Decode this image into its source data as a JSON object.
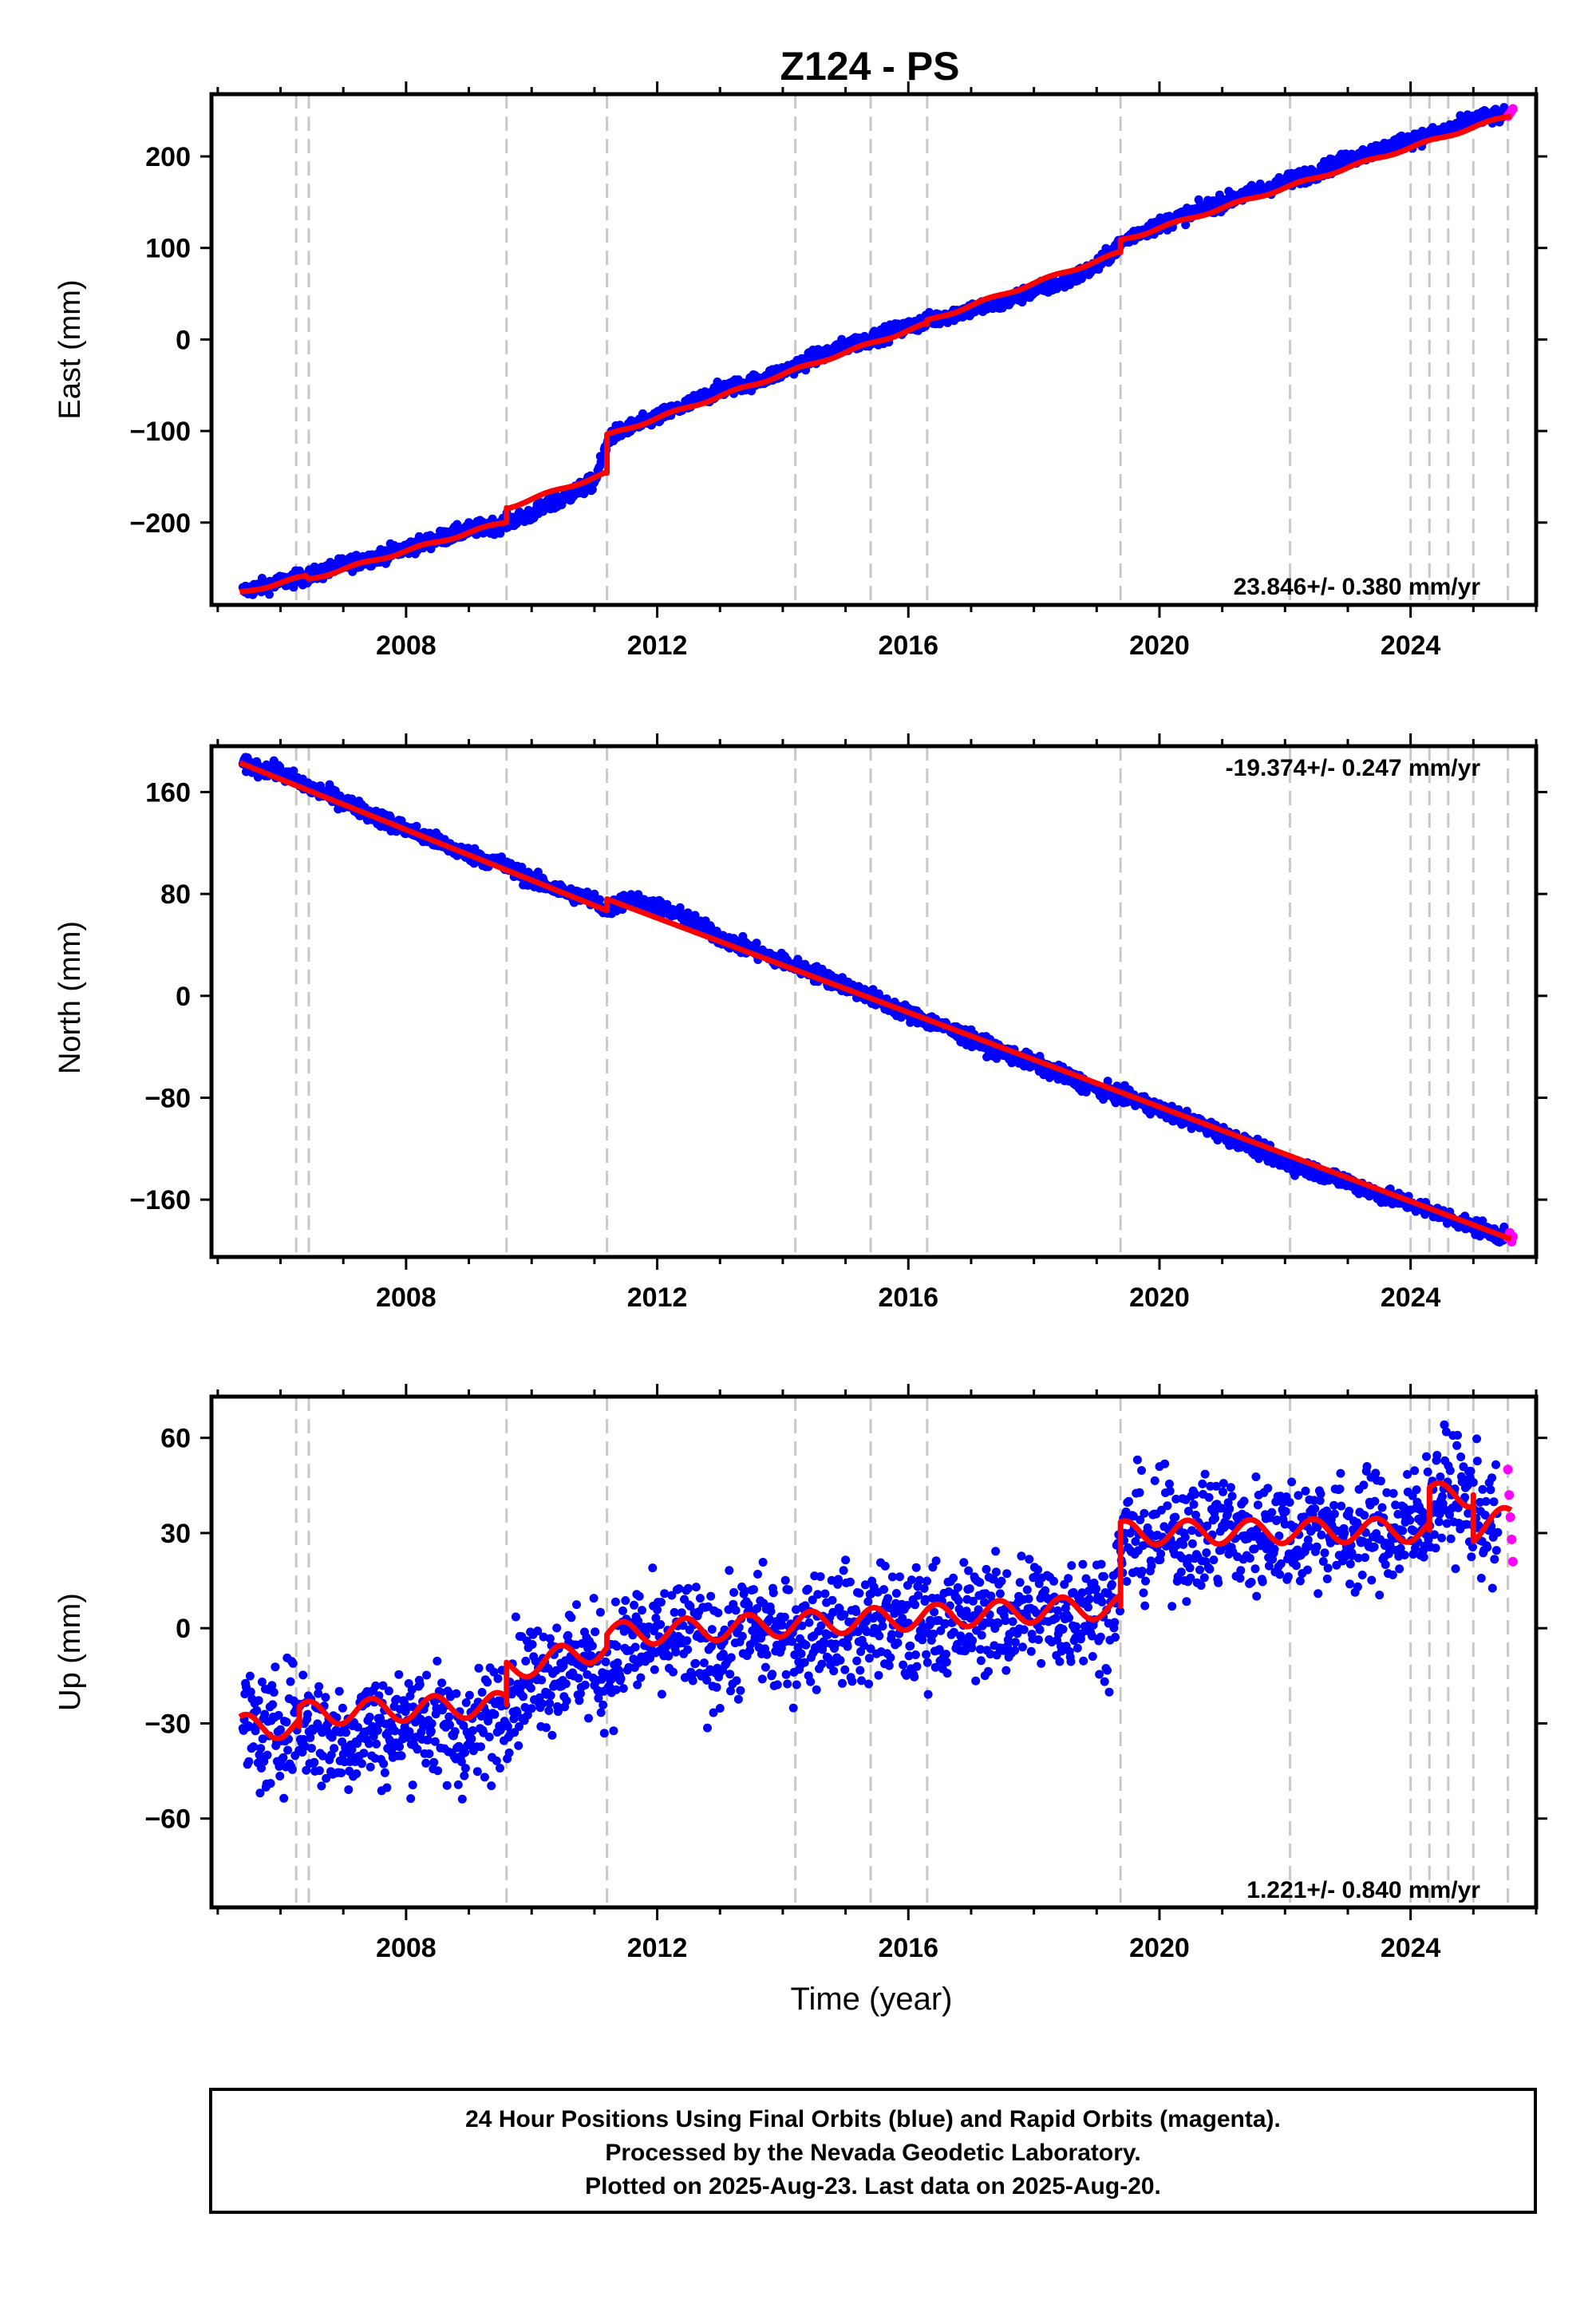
{
  "title": "Z124 - PS",
  "footer": {
    "line1": "24 Hour Positions Using Final Orbits (blue) and Rapid Orbits (magenta).",
    "line2": "Processed by the Nevada Geodetic Laboratory.",
    "line3": "Plotted on 2025-Aug-23. Last data on 2025-Aug-20."
  },
  "colors": {
    "final_orbits": "#0000ff",
    "rapid_orbits": "#ff00ff",
    "model": "#ff0000",
    "event_lines": "#c8c8c8"
  },
  "chart_data": [
    {
      "type": "scatter",
      "ylabel": "East (mm)",
      "xlabel": "",
      "xlim": [
        2004.9,
        2026.0
      ],
      "ylim": [
        -290,
        268
      ],
      "xticks": [
        2008,
        2012,
        2016,
        2020,
        2024
      ],
      "yticks": [
        200,
        100,
        0,
        -100,
        -200
      ],
      "ytick_labels": [
        "200",
        "100",
        "0",
        "−100",
        "−200"
      ],
      "rate_label": "23.846+/- 0.380 mm/yr",
      "rate_position": "bottom-right",
      "event_lines": [
        2006.25,
        2006.45,
        2009.6,
        2011.2,
        2014.2,
        2015.4,
        2016.3,
        2019.38,
        2022.08,
        2024.0,
        2024.3,
        2024.6,
        2025.0,
        2025.55
      ],
      "series": [
        {
          "kind": "final",
          "x": [
            2005.4,
            2006.0,
            2006.5,
            2007.0,
            2007.5,
            2008.0,
            2008.5,
            2009.0,
            2009.5,
            2009.95,
            2010.5,
            2011.0,
            2011.25,
            2011.5,
            2012.0,
            2012.5,
            2013.0,
            2013.5,
            2014.0,
            2014.5,
            2015.0,
            2015.5,
            2016.0,
            2016.5,
            2017.0,
            2017.5,
            2018.0,
            2018.5,
            2019.0,
            2019.4,
            2019.6,
            2020.0,
            2020.5,
            2021.0,
            2021.5,
            2022.0,
            2022.5,
            2023.0,
            2023.5,
            2024.0,
            2024.5,
            2025.0,
            2025.5
          ],
          "y": [
            -275,
            -265,
            -258,
            -246,
            -238,
            -228,
            -218,
            -208,
            -202,
            -192,
            -174,
            -155,
            -105,
            -98,
            -85,
            -71,
            -55,
            -47,
            -35,
            -20,
            -7,
            3,
            14,
            24,
            33,
            40,
            54,
            63,
            80,
            105,
            115,
            125,
            138,
            150,
            161,
            172,
            183,
            197,
            207,
            218,
            226,
            241,
            245
          ]
        },
        {
          "kind": "rapid",
          "x": [
            2025.55,
            2025.58,
            2025.61,
            2025.63
          ],
          "y": [
            244,
            247,
            250,
            252
          ]
        }
      ],
      "model_line": {
        "x": [
          2005.35,
          2006.4,
          2006.45,
          2009.6,
          2009.6,
          2011.2,
          2011.2,
          2016.3,
          2016.3,
          2019.38,
          2019.38,
          2025.6
        ],
        "y": [
          -277,
          -259,
          -262,
          -199,
          -184,
          -146,
          -105,
          17,
          20,
          95,
          108,
          245
        ]
      }
    },
    {
      "type": "scatter",
      "ylabel": "North (mm)",
      "xlabel": "",
      "xlim": [
        2004.9,
        2026.0
      ],
      "ylim": [
        -205,
        196
      ],
      "xticks": [
        2008,
        2012,
        2016,
        2020,
        2024
      ],
      "yticks": [
        160,
        80,
        0,
        -80,
        -160
      ],
      "ytick_labels": [
        "160",
        "80",
        "0",
        "−80",
        "−160"
      ],
      "rate_label": "-19.374+/- 0.247 mm/yr",
      "rate_position": "top-right",
      "event_lines": [
        2006.25,
        2006.45,
        2009.6,
        2011.2,
        2014.2,
        2015.4,
        2016.3,
        2019.38,
        2022.08,
        2024.0,
        2024.3,
        2024.6,
        2025.0,
        2025.55
      ],
      "series": [
        {
          "kind": "final",
          "x": [
            2005.4,
            2006.0,
            2006.5,
            2007.0,
            2007.5,
            2008.0,
            2008.5,
            2009.0,
            2009.5,
            2010.0,
            2010.5,
            2011.0,
            2011.2,
            2011.5,
            2012.0,
            2012.5,
            2013.0,
            2013.5,
            2014.0,
            2014.5,
            2015.0,
            2015.5,
            2016.0,
            2016.5,
            2017.0,
            2017.5,
            2018.0,
            2018.5,
            2019.0,
            2019.5,
            2020.0,
            2020.5,
            2021.0,
            2021.5,
            2022.0,
            2022.5,
            2023.0,
            2023.5,
            2024.0,
            2024.5,
            2025.0,
            2025.5
          ],
          "y": [
            182,
            175,
            163,
            153,
            141,
            131,
            121,
            111,
            104,
            91,
            82,
            75,
            67,
            76,
            70,
            60,
            46,
            36,
            27,
            18,
            8,
            -3,
            -14,
            -23,
            -34,
            -44,
            -53,
            -63,
            -73,
            -80,
            -89,
            -98,
            -108,
            -119,
            -131,
            -138,
            -146,
            -156,
            -163,
            -172,
            -181,
            -189
          ]
        },
        {
          "kind": "rapid",
          "x": [
            2025.55,
            2025.58,
            2025.61,
            2025.63
          ],
          "y": [
            -190,
            -186,
            -193,
            -189
          ]
        }
      ],
      "model_line": {
        "x": [
          2005.35,
          2011.2,
          2011.2,
          2025.6
        ],
        "y": [
          183,
          67,
          76,
          -191
        ]
      }
    },
    {
      "type": "scatter",
      "ylabel": "Up (mm)",
      "xlabel": "Time (year)",
      "xlim": [
        2004.9,
        2026.0
      ],
      "ylim": [
        -88,
        73
      ],
      "xticks": [
        2008,
        2012,
        2016,
        2020,
        2024
      ],
      "yticks": [
        60,
        30,
        0,
        -30,
        -60
      ],
      "ytick_labels": [
        "60",
        "30",
        "0",
        "−30",
        "−60"
      ],
      "rate_label": "1.221+/- 0.840 mm/yr",
      "rate_position": "bottom-right",
      "event_lines": [
        2006.25,
        2006.45,
        2009.6,
        2011.2,
        2014.2,
        2015.4,
        2016.3,
        2019.38,
        2022.08,
        2024.0,
        2024.3,
        2024.6,
        2025.0,
        2025.55
      ],
      "series": [
        {
          "kind": "final",
          "x": [
            2005.4,
            2005.8,
            2006.2,
            2006.6,
            2007.0,
            2007.4,
            2007.8,
            2008.2,
            2008.6,
            2009.0,
            2009.4,
            2009.6,
            2010.0,
            2010.4,
            2010.8,
            2011.2,
            2011.6,
            2012.0,
            2012.4,
            2012.8,
            2013.2,
            2013.6,
            2014.0,
            2014.4,
            2014.8,
            2015.2,
            2015.6,
            2016.0,
            2016.4,
            2016.8,
            2017.2,
            2017.6,
            2018.0,
            2018.4,
            2018.8,
            2019.2,
            2019.5,
            2019.8,
            2020.2,
            2020.6,
            2021.0,
            2021.4,
            2021.8,
            2022.2,
            2022.6,
            2023.0,
            2023.4,
            2023.8,
            2024.2,
            2024.6,
            2025.0,
            2025.4
          ],
          "y": [
            -30,
            -35,
            -28,
            -32,
            -36,
            -30,
            -33,
            -27,
            -32,
            -34,
            -28,
            -20,
            -15,
            -12,
            -10,
            -14,
            -3,
            -6,
            -2,
            -8,
            -4,
            1,
            -5,
            0,
            2,
            -1,
            3,
            -2,
            4,
            1,
            5,
            2,
            7,
            3,
            8,
            4,
            30,
            27,
            31,
            28,
            33,
            27,
            32,
            29,
            34,
            28,
            32,
            30,
            36,
            44,
            38,
            30
          ]
        },
        {
          "kind": "rapid",
          "x": [
            2025.55,
            2025.57,
            2025.59,
            2025.61,
            2025.63
          ],
          "y": [
            50,
            42,
            35,
            28,
            21
          ]
        }
      ],
      "model_line": {
        "x": [
          2005.35,
          2006.3,
          2006.3,
          2009.6,
          2009.6,
          2011.2,
          2011.2,
          2019.38,
          2019.38,
          2024.3,
          2024.3,
          2025.0,
          2025.0,
          2025.6
        ],
        "y": [
          -31,
          -31,
          -27,
          -24,
          -13,
          -6,
          -2,
          7,
          30,
          31,
          42,
          42,
          31,
          35
        ]
      }
    }
  ]
}
